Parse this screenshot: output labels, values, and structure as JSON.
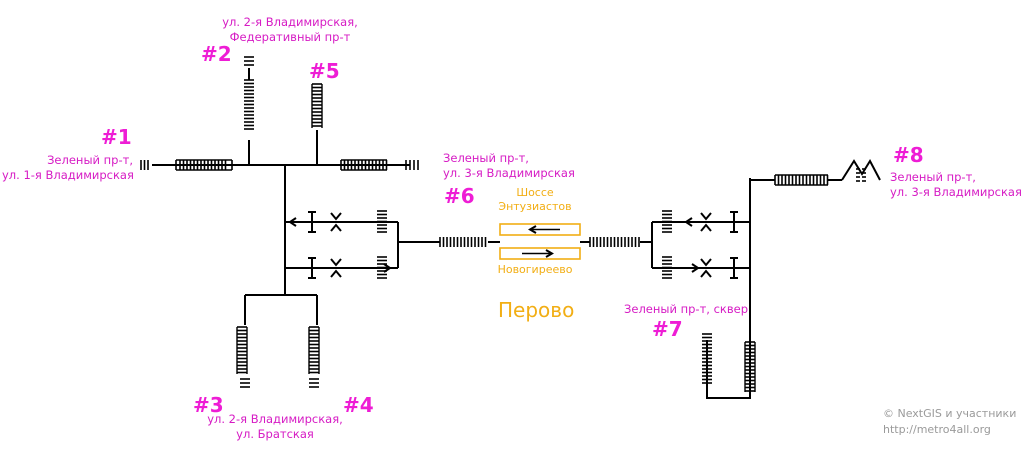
{
  "exits": [
    {
      "id": "1",
      "number": "#1",
      "label": [
        "Зеленый пр-т,",
        "ул. 1-я Владимирская"
      ]
    },
    {
      "id": "2",
      "number": "#2",
      "label": [
        "ул. 2-я Владимирская,",
        "Федеративный пр-т"
      ]
    },
    {
      "id": "3",
      "number": "#3",
      "label": []
    },
    {
      "id": "4",
      "number": "#4",
      "label": []
    },
    {
      "id": "3-4",
      "number": "",
      "label": [
        "ул. 2-я Владимирская,",
        "ул. Братская"
      ]
    },
    {
      "id": "5",
      "number": "#5",
      "label": []
    },
    {
      "id": "6",
      "number": "#6",
      "label": [
        "Зеленый пр-т,",
        "ул. 3-я Владимирская"
      ]
    },
    {
      "id": "7",
      "number": "#7",
      "label": [
        "Зеленый пр-т, сквер"
      ]
    },
    {
      "id": "8",
      "number": "#8",
      "label": [
        "Зеленый пр-т,",
        "ул. 3-я Владимирская"
      ]
    }
  ],
  "platform": {
    "station": "Перово",
    "direction_top": [
      "Шоссе",
      "Энтузиастов"
    ],
    "direction_bottom": [
      "Новогиреево"
    ]
  },
  "credit": {
    "line1": "© NextGIS и участники",
    "line2": "http://metro4all.org"
  },
  "colors": {
    "accent": "#ee1dd5",
    "label": "#d61bc4",
    "platform": "#f2ae14",
    "lines": "#000000",
    "credit": "#9a9a9a"
  }
}
